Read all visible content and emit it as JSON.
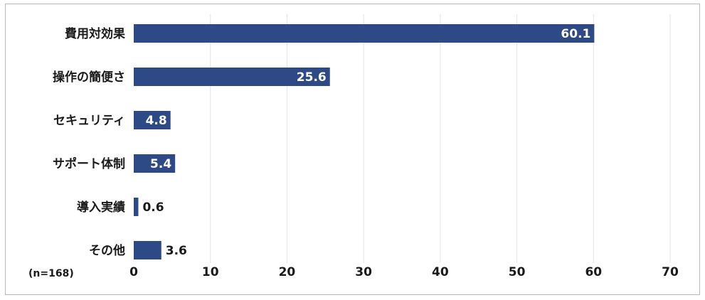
{
  "note": "(n=168)",
  "chart_data": {
    "type": "bar",
    "orientation": "horizontal",
    "categories": [
      "費用対効果",
      "操作の簡便さ",
      "セキュリティ",
      "サポート体制",
      "導入実績",
      "その他"
    ],
    "values": [
      60.1,
      25.6,
      4.8,
      5.4,
      0.6,
      3.6
    ],
    "data_labels": [
      "60.1",
      "25.6",
      "4.8",
      "5.4",
      "0.6",
      "3.6"
    ],
    "xlim": [
      0,
      70
    ],
    "xticks": [
      0,
      10,
      20,
      30,
      40,
      50,
      60,
      70
    ],
    "xtick_labels": [
      "0",
      "10",
      "20",
      "30",
      "40",
      "50",
      "60",
      "70"
    ],
    "title": "",
    "xlabel": "",
    "ylabel": "",
    "grid": "vertical",
    "legend": "none",
    "colors": {
      "bar": "#2e4a86",
      "grid": "#e3e3e3",
      "label_inside": "#ffffff",
      "label_outside": "#1a1a1a"
    }
  }
}
